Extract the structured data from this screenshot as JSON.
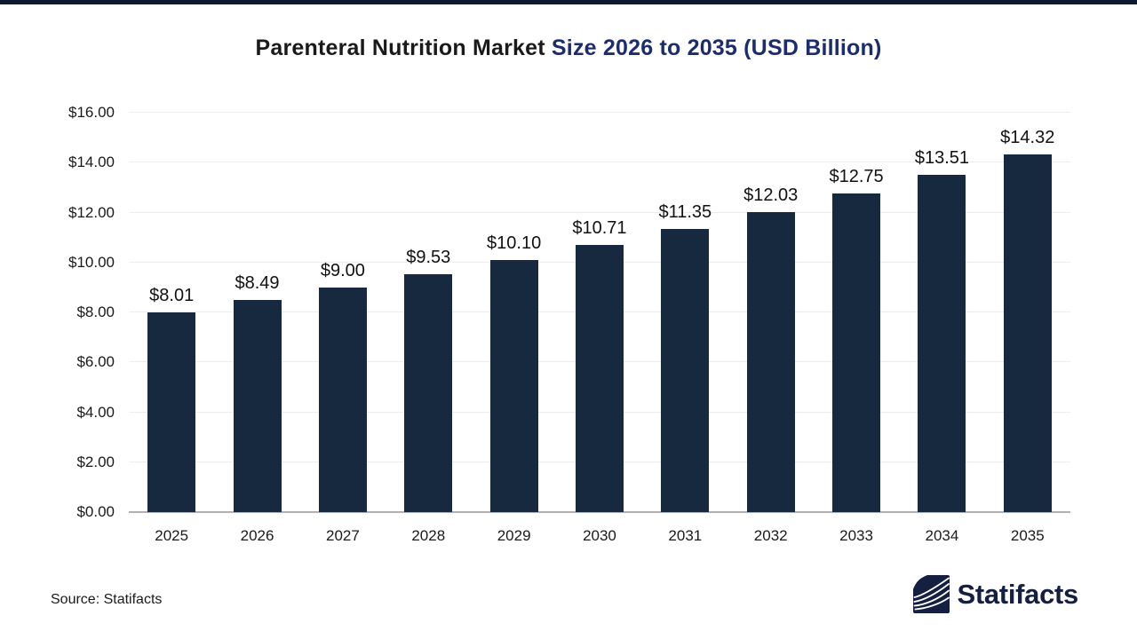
{
  "title": {
    "part1": "Parenteral Nutrition Market",
    "part2": " Size 2026 to 2035 (USD Billion)",
    "part1_color": "#1a1a1a",
    "part2_color": "#1b2d6e"
  },
  "chart_data": {
    "type": "bar",
    "title": "Parenteral Nutrition Market Size 2026 to 2035 (USD Billion)",
    "categories": [
      "2025",
      "2026",
      "2027",
      "2028",
      "2029",
      "2030",
      "2031",
      "2032",
      "2033",
      "2034",
      "2035"
    ],
    "values": [
      8.01,
      8.49,
      9.0,
      9.53,
      10.1,
      10.71,
      11.35,
      12.03,
      12.75,
      13.51,
      14.32
    ],
    "value_labels": [
      "$8.01",
      "$8.49",
      "$9.00",
      "$9.53",
      "$10.10",
      "$10.71",
      "$11.35",
      "$12.03",
      "$12.75",
      "$13.51",
      "$14.32"
    ],
    "y_ticks": [
      "$0.00",
      "$2.00",
      "$4.00",
      "$6.00",
      "$8.00",
      "$10.00",
      "$12.00",
      "$14.00",
      "$16.00"
    ],
    "ylim": [
      0,
      16
    ],
    "xlabel": "",
    "ylabel": "",
    "grid": true,
    "legend": "none",
    "bar_color": "#16293F",
    "gridline_color": "#ededed",
    "baseline_color": "#b0b0b0",
    "currency_unit": "USD Billion"
  },
  "footer": {
    "source_label": "Source: Statifacts",
    "brand": {
      "name": "Statifacts",
      "logo_icon": "wave-pages-icon",
      "color": "#151F42"
    }
  },
  "accent": {
    "top_bar_color": "#0d1a2e"
  }
}
